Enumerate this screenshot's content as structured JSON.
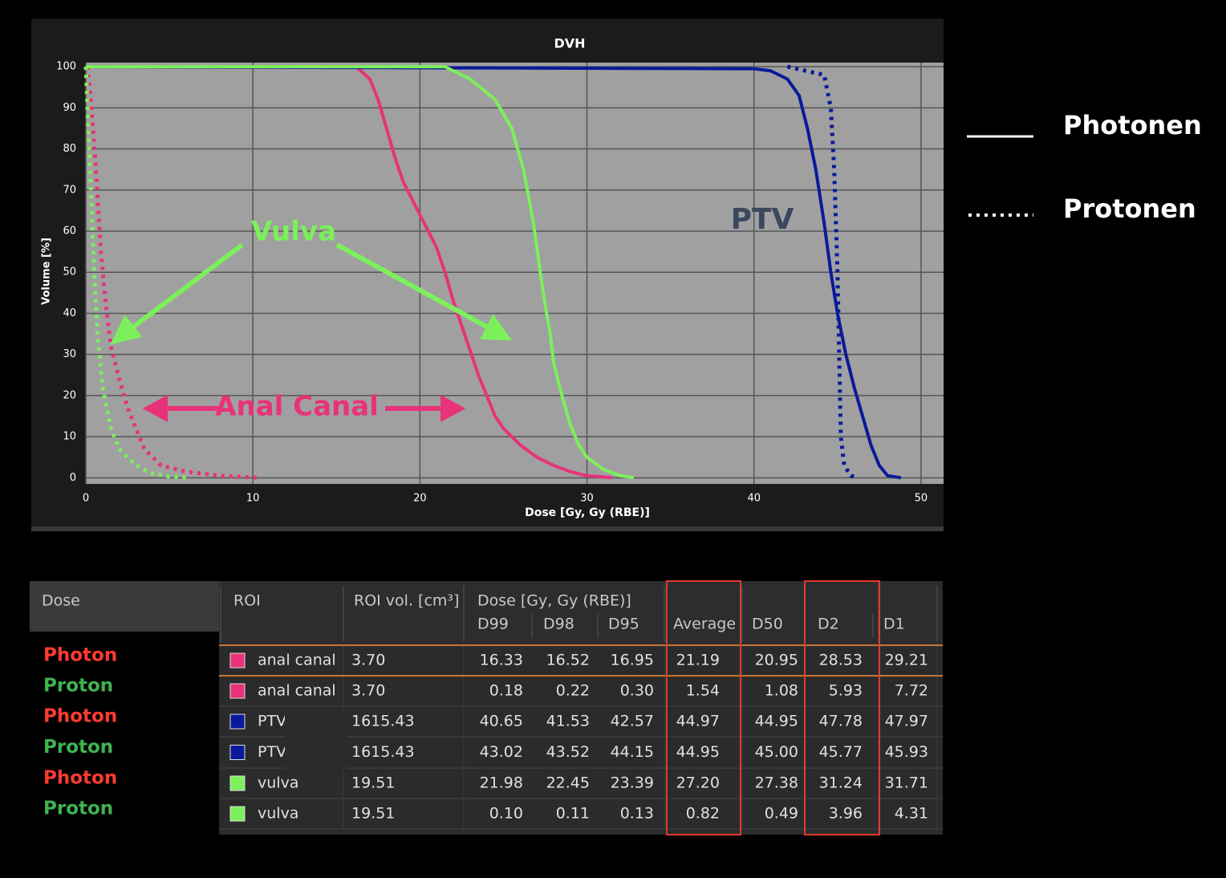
{
  "chart_data": {
    "type": "line",
    "title": "DVH",
    "xlabel": "Dose [Gy, Gy (RBE)]",
    "ylabel": "Volume [%]",
    "xlim": [
      0,
      51.35
    ],
    "ylim": [
      -1.5,
      101
    ],
    "xticks": [
      0,
      10,
      20,
      30,
      40,
      50
    ],
    "yticks": [
      0,
      10,
      20,
      30,
      40,
      50,
      60,
      70,
      80,
      90,
      100
    ],
    "grid": true,
    "series": [
      {
        "color": "#e8327a",
        "style": "solid",
        "x": [
          0,
          16.2,
          17,
          17.5,
          18,
          18.5,
          19,
          19.5,
          20,
          20.5,
          21,
          21.5,
          22,
          22.5,
          23,
          23.5,
          24,
          24.5,
          25,
          26,
          27,
          28,
          29,
          30,
          31,
          31.5
        ],
        "values": [
          100,
          100,
          97,
          92,
          85,
          78,
          72,
          68,
          64,
          60,
          56,
          50,
          43,
          37,
          31,
          25,
          20,
          15,
          12,
          8,
          5,
          3,
          1.5,
          0.5,
          0.2,
          0
        ]
      },
      {
        "color": "#e8327a",
        "style": "dotted",
        "x": [
          0.1,
          0.3,
          0.6,
          0.9,
          1.2,
          1.5,
          2,
          2.5,
          3,
          3.5,
          4.5,
          6,
          8,
          10.5
        ],
        "values": [
          100,
          92,
          75,
          55,
          42,
          32,
          24,
          17,
          12,
          7,
          3,
          1.5,
          0.5,
          0
        ]
      },
      {
        "color": "#0a1a9a",
        "style": "solid",
        "x": [
          0,
          40,
          41,
          42,
          42.7,
          43.2,
          43.7,
          44.2,
          44.6,
          45,
          45.5,
          46,
          46.5,
          47,
          47.5,
          48,
          48.8
        ],
        "values": [
          100,
          99.5,
          99,
          97,
          93,
          85,
          75,
          62,
          50,
          40,
          30,
          22,
          15,
          8,
          3,
          0.5,
          0
        ]
      },
      {
        "color": "#0a1a9a",
        "style": "dotted",
        "x": [
          42,
          44.2,
          44.6,
          44.8,
          45,
          45.1,
          45.2,
          45.4,
          45.8,
          46.2
        ],
        "values": [
          100,
          98,
          90,
          75,
          50,
          30,
          10,
          3,
          0.5,
          0
        ]
      },
      {
        "color": "#7cf05a",
        "style": "solid",
        "x": [
          0,
          21.5,
          23,
          24.5,
          25.5,
          26.2,
          26.8,
          27.2,
          27.5,
          27.8,
          28,
          28.5,
          29,
          29.5,
          30,
          31,
          32,
          32.8
        ],
        "values": [
          100,
          100,
          97,
          92,
          85,
          75,
          62,
          50,
          42,
          35,
          28,
          20,
          13,
          8,
          5,
          2,
          0.5,
          0
        ]
      },
      {
        "color": "#7cf05a",
        "style": "dotted",
        "x": [
          0,
          0.1,
          0.3,
          0.5,
          0.7,
          1,
          1.5,
          2,
          3,
          4,
          5,
          6.2
        ],
        "values": [
          100,
          90,
          70,
          50,
          35,
          22,
          12,
          7,
          3,
          1,
          0.3,
          0
        ]
      }
    ],
    "annotations": [
      "Vulva",
      "Anal Canal",
      "PTV"
    ],
    "legend": [
      {
        "label": "Photonen",
        "style": "solid"
      },
      {
        "label": "Protonen",
        "style": "dotted"
      }
    ]
  },
  "table": {
    "header": [
      "Dose",
      "ROI",
      "ROI vol. [cm³]",
      "Dose [Gy, Gy (RBE)]",
      "D99",
      "D98",
      "D95",
      "Average",
      "D50",
      "D2",
      "D1"
    ],
    "rows": [
      {
        "dose": "Photon",
        "dose_color": "#ff3b30",
        "roi": "anal canal",
        "color": "#e8327a",
        "cells": [
          "3.70",
          "16.33",
          "16.52",
          "16.95",
          "21.19",
          "20.95",
          "28.53",
          "29.21"
        ]
      },
      {
        "dose": "Proton",
        "dose_color": "#3fb34f",
        "roi": "anal canal",
        "color": "#e8327a",
        "cells": [
          "3.70",
          "0.18",
          "0.22",
          "0.30",
          "1.54",
          "1.08",
          "5.93",
          "7.72"
        ]
      },
      {
        "dose": "Photon",
        "dose_color": "#ff3b30",
        "roi": "PTV",
        "color": "#0a1a9a",
        "cells": [
          "1615.43",
          "40.65",
          "41.53",
          "42.57",
          "44.97",
          "44.95",
          "47.78",
          "47.97"
        ]
      },
      {
        "dose": "Proton",
        "dose_color": "#3fb34f",
        "roi": "PTV",
        "color": "#0a1a9a",
        "cells": [
          "1615.43",
          "43.02",
          "43.52",
          "44.15",
          "44.95",
          "45.00",
          "45.77",
          "45.93"
        ]
      },
      {
        "dose": "Photon",
        "dose_color": "#ff3b30",
        "roi": "vulva",
        "color": "#7cf05a",
        "cells": [
          "19.51",
          "21.98",
          "22.45",
          "23.39",
          "27.20",
          "27.38",
          "31.24",
          "31.71"
        ]
      },
      {
        "dose": "Proton",
        "dose_color": "#3fb34f",
        "roi": "vulva",
        "color": "#7cf05a",
        "cells": [
          "19.51",
          "0.10",
          "0.11",
          "0.13",
          "0.82",
          "0.49",
          "3.96",
          "4.31"
        ]
      }
    ]
  }
}
